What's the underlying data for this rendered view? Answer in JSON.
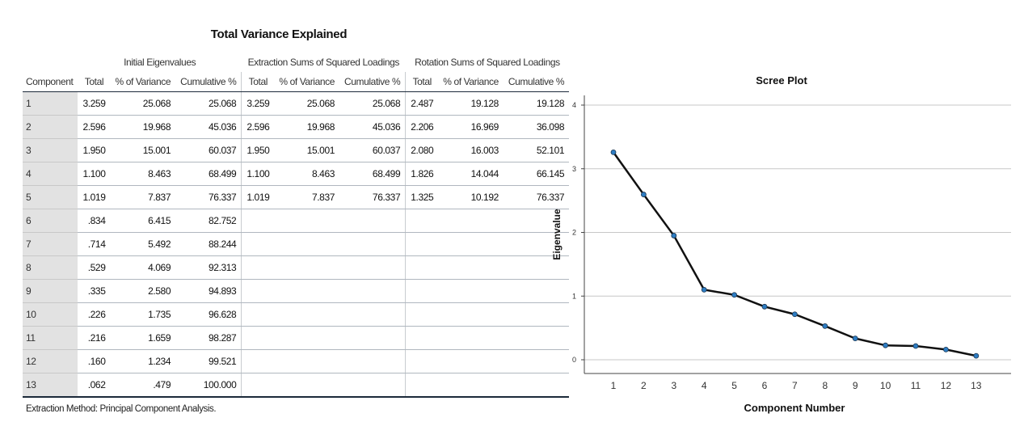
{
  "table": {
    "title": "Total Variance Explained",
    "group_headers": [
      "Initial Eigenvalues",
      "Extraction Sums of Squared Loadings",
      "Rotation Sums of Squared Loadings"
    ],
    "column_headers": [
      "Component",
      "Total",
      "% of Variance",
      "Cumulative %",
      "Total",
      "% of Variance",
      "Cumulative %",
      "Total",
      "% of Variance",
      "Cumulative %"
    ],
    "rows": [
      [
        "1",
        "3.259",
        "25.068",
        "25.068",
        "3.259",
        "25.068",
        "25.068",
        "2.487",
        "19.128",
        "19.128"
      ],
      [
        "2",
        "2.596",
        "19.968",
        "45.036",
        "2.596",
        "19.968",
        "45.036",
        "2.206",
        "16.969",
        "36.098"
      ],
      [
        "3",
        "1.950",
        "15.001",
        "60.037",
        "1.950",
        "15.001",
        "60.037",
        "2.080",
        "16.003",
        "52.101"
      ],
      [
        "4",
        "1.100",
        "8.463",
        "68.499",
        "1.100",
        "8.463",
        "68.499",
        "1.826",
        "14.044",
        "66.145"
      ],
      [
        "5",
        "1.019",
        "7.837",
        "76.337",
        "1.019",
        "7.837",
        "76.337",
        "1.325",
        "10.192",
        "76.337"
      ],
      [
        "6",
        ".834",
        "6.415",
        "82.752",
        "",
        "",
        "",
        "",
        "",
        ""
      ],
      [
        "7",
        ".714",
        "5.492",
        "88.244",
        "",
        "",
        "",
        "",
        "",
        ""
      ],
      [
        "8",
        ".529",
        "4.069",
        "92.313",
        "",
        "",
        "",
        "",
        "",
        ""
      ],
      [
        "9",
        ".335",
        "2.580",
        "94.893",
        "",
        "",
        "",
        "",
        "",
        ""
      ],
      [
        "10",
        ".226",
        "1.735",
        "96.628",
        "",
        "",
        "",
        "",
        "",
        ""
      ],
      [
        "11",
        ".216",
        "1.659",
        "98.287",
        "",
        "",
        "",
        "",
        "",
        ""
      ],
      [
        "12",
        ".160",
        "1.234",
        "99.521",
        "",
        "",
        "",
        "",
        "",
        ""
      ],
      [
        "13",
        ".062",
        ".479",
        "100.000",
        "",
        "",
        "",
        "",
        "",
        ""
      ]
    ],
    "footnote": "Extraction Method: Principal Component Analysis."
  },
  "chart_data": {
    "type": "line",
    "title": "Scree Plot",
    "xlabel": "Component Number",
    "ylabel": "Eigenvalue",
    "x": [
      1,
      2,
      3,
      4,
      5,
      6,
      7,
      8,
      9,
      10,
      11,
      12,
      13
    ],
    "series": [
      {
        "values": [
          3.259,
          2.596,
          1.95,
          1.1,
          1.019,
          0.834,
          0.714,
          0.529,
          0.335,
          0.226,
          0.216,
          0.16,
          0.062
        ]
      }
    ],
    "ylim": [
      0,
      4
    ],
    "yticks": [
      0,
      1,
      2,
      3,
      4
    ],
    "grid": "horizontal",
    "colors": {
      "line": "#111111",
      "marker": "#2e7dc3",
      "grid": "#c7c7c7"
    }
  }
}
